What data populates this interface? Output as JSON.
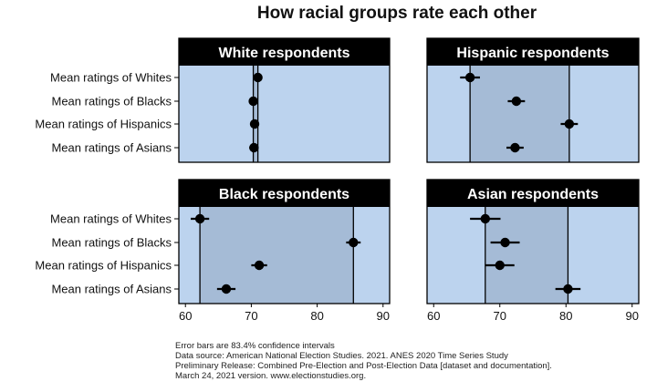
{
  "chart_data": {
    "type": "scatter",
    "title": "How racial groups rate each other",
    "row_labels": [
      "Mean ratings of Whites",
      "Mean ratings of Blacks",
      "Mean ratings of Hispanics",
      "Mean ratings of Asians"
    ],
    "xlim": [
      59,
      91
    ],
    "xticks": [
      60,
      70,
      80,
      90
    ],
    "colors": {
      "panel_bg": "#bcd3ee",
      "shade": "#a5bbd6",
      "header_bg": "#000000",
      "point": "#000000"
    },
    "panels": [
      {
        "title": "White respondents",
        "values": [
          71,
          70.3,
          70.5,
          70.4
        ],
        "errors": [
          [
            70.5,
            71.5
          ],
          [
            69.7,
            70.9
          ],
          [
            69.9,
            71.1
          ],
          [
            69.7,
            71.1
          ]
        ]
      },
      {
        "title": "Hispanic respondents",
        "values": [
          65.5,
          72.5,
          80.5,
          72.3
        ],
        "errors": [
          [
            64,
            67
          ],
          [
            71.2,
            73.8
          ],
          [
            79.2,
            81.8
          ],
          [
            71,
            73.6
          ]
        ]
      },
      {
        "title": "Black respondents",
        "values": [
          62.2,
          85.5,
          71.2,
          66.2
        ],
        "errors": [
          [
            60.8,
            63.6
          ],
          [
            84.4,
            86.6
          ],
          [
            70,
            72.4
          ],
          [
            64.8,
            67.6
          ]
        ]
      },
      {
        "title": "Asian respondents",
        "values": [
          67.8,
          70.8,
          70,
          80.3
        ],
        "errors": [
          [
            65.5,
            70.1
          ],
          [
            68.6,
            73
          ],
          [
            67.8,
            72.2
          ],
          [
            78.4,
            82.2
          ]
        ]
      }
    ]
  },
  "footnote": [
    "Error bars are 83.4% confidence intervals",
    "Data source: American National Election Studies. 2021. ANES 2020 Time Series Study",
    "Preliminary Release: Combined Pre-Election and Post-Election Data [dataset and documentation].",
    "March 24, 2021 version. www.electionstudies.org."
  ]
}
